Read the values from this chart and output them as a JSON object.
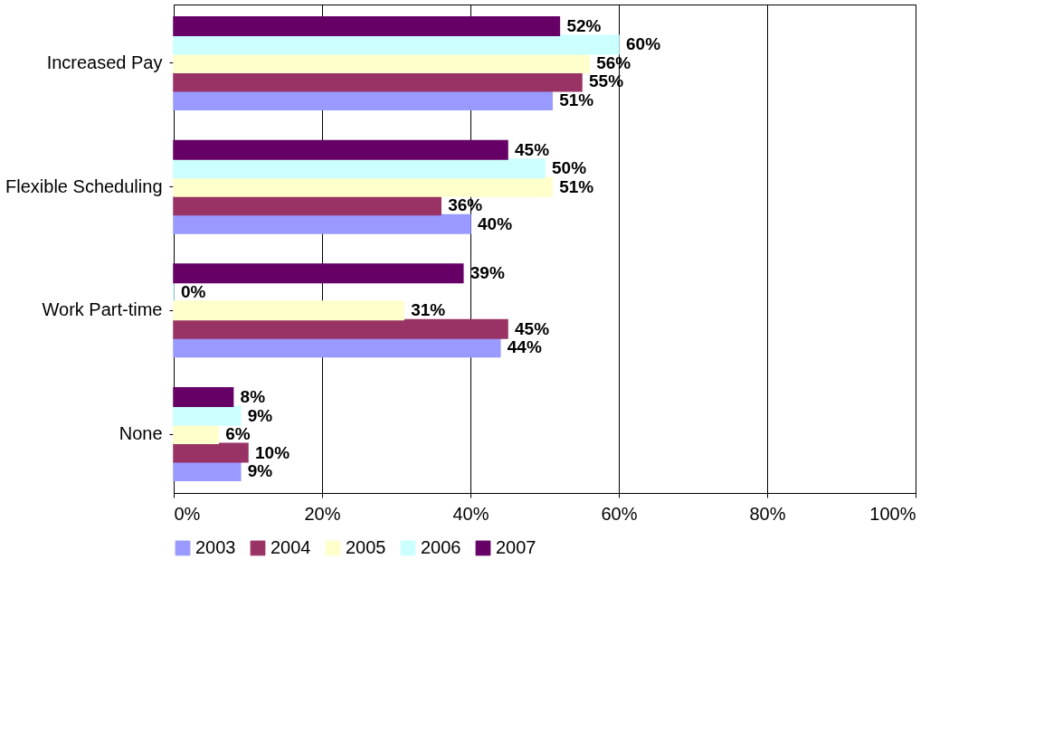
{
  "chart_data": {
    "type": "bar",
    "orientation": "horizontal",
    "categories": [
      "Increased Pay",
      "Flexible Scheduling",
      "Work Part-time",
      "None"
    ],
    "series": [
      {
        "name": "2003",
        "color": "#9999ff",
        "values": [
          51,
          40,
          44,
          9
        ],
        "value_labels": [
          "51%",
          "40%",
          "44%",
          "9%"
        ]
      },
      {
        "name": "2004",
        "color": "#993366",
        "values": [
          55,
          36,
          45,
          10
        ],
        "value_labels": [
          "55%",
          "36%",
          "45%",
          "10%"
        ]
      },
      {
        "name": "2005",
        "color": "#ffffcc",
        "values": [
          56,
          51,
          31,
          6
        ],
        "value_labels": [
          "56%",
          "51%",
          "31%",
          "6%"
        ]
      },
      {
        "name": "2006",
        "color": "#ccffff",
        "values": [
          60,
          50,
          0,
          9
        ],
        "value_labels": [
          "60%",
          "50%",
          "0%",
          "9%"
        ]
      },
      {
        "name": "2007",
        "color": "#660066",
        "values": [
          52,
          45,
          39,
          8
        ],
        "value_labels": [
          "52%",
          "45%",
          "39%",
          "8%"
        ]
      }
    ],
    "xlim": [
      0,
      100
    ],
    "xticks": [
      {
        "value": 0,
        "label": "0%"
      },
      {
        "value": 20,
        "label": "20%"
      },
      {
        "value": 40,
        "label": "40%"
      },
      {
        "value": 60,
        "label": "60%"
      },
      {
        "value": 80,
        "label": "80%"
      },
      {
        "value": 100,
        "label": "100%"
      }
    ],
    "grid": "x",
    "legend": "bottom"
  }
}
